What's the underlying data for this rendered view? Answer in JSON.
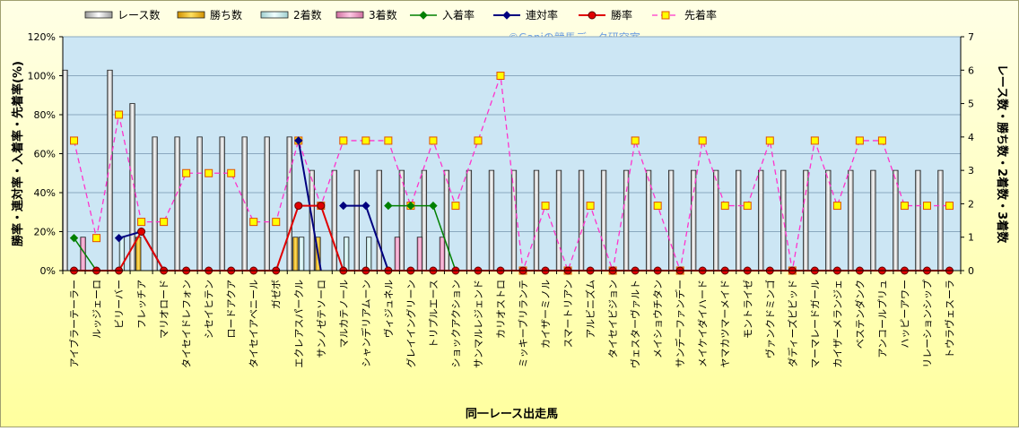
{
  "chart_data": {
    "type": "bar",
    "title": "",
    "watermark": "©Ganiの競馬データ研究室",
    "xlabel": "同一レース出走馬",
    "ylabel_left": "勝率・連対率・入着率・先着率(%)",
    "ylabel_right": "レース数・勝ち数・2着数・3着数",
    "ylim_left": [
      0,
      120
    ],
    "ylim_right": [
      0,
      7
    ],
    "left_ticks": [
      "0%",
      "20%",
      "40%",
      "60%",
      "80%",
      "100%",
      "120%"
    ],
    "right_ticks": [
      "0",
      "1",
      "2",
      "3",
      "4",
      "5",
      "6",
      "7"
    ],
    "grid": "horizontal",
    "legend_position": "top",
    "colors": {
      "races": "#ffffff",
      "wins": "#f0c020",
      "second": "#e0ffff",
      "third": "#f4a0c8",
      "place_rate": "#008000",
      "rentai_rate": "#00007f",
      "win_rate": "#e00000",
      "senchaku_rate": "#ff33cc",
      "senchaku_marker": "#ffff00",
      "plot_bg": "#cce6f4",
      "page_bg": "#ffffc8"
    },
    "categories": [
      "アイブラーテーラー",
      "ルッジェーロ",
      "ビリーバー",
      "フレッチア",
      "マリオロード",
      "タイセイドレフォン",
      "シセイヒテン",
      "ロードアクア",
      "タイセイアベニール",
      "ガゼボ",
      "エクレアスパークル",
      "サンノゼテソーロ",
      "マルカテノール",
      "シャンデリアムーン",
      "ヴィジュネル",
      "グレイイングリーン",
      "トリプルエース",
      "ショックアクション",
      "サンマルレジェンド",
      "カリオストロ",
      "ミッキーブリランテ",
      "カイザーミノル",
      "スマートリアン",
      "アルビニズム",
      "タイセイビジョン",
      "ヴェスターヴァルト",
      "メイショウチタン",
      "サンデーファンデー",
      "メイケイダイハード",
      "ヤマカツマーメイド",
      "モントライゼ",
      "ヴァンクドミンゴ",
      "ダディーズビビッド",
      "マーマレードガール",
      "カイザーメランジェ",
      "ベステンダンク",
      "アンコールプリュ",
      "ハッピーアワー",
      "リレーションシップ",
      "トウラヴェスーラ"
    ],
    "series": [
      {
        "name": "レース数",
        "axis": "right",
        "kind": "bar",
        "values": [
          6,
          0,
          6,
          5,
          4,
          4,
          4,
          4,
          4,
          4,
          4,
          3,
          3,
          3,
          3,
          3,
          3,
          3,
          3,
          3,
          3,
          3,
          3,
          3,
          3,
          3,
          3,
          3,
          3,
          3,
          3,
          3,
          3,
          3,
          3,
          3,
          3,
          3,
          3,
          3
        ]
      },
      {
        "name": "勝ち数",
        "axis": "right",
        "kind": "bar",
        "values": [
          0,
          0,
          0,
          1,
          0,
          0,
          0,
          0,
          0,
          0,
          1,
          1,
          0,
          0,
          0,
          0,
          0,
          0,
          0,
          0,
          0,
          0,
          0,
          0,
          0,
          0,
          0,
          0,
          0,
          0,
          0,
          0,
          0,
          0,
          0,
          0,
          0,
          0,
          0,
          0
        ]
      },
      {
        "name": "2着数",
        "axis": "right",
        "kind": "bar",
        "values": [
          0,
          0,
          1,
          0,
          0,
          0,
          0,
          0,
          0,
          0,
          1,
          0,
          1,
          1,
          0,
          0,
          0,
          0,
          0,
          0,
          0,
          0,
          0,
          0,
          0,
          0,
          0,
          0,
          0,
          0,
          0,
          0,
          0,
          0,
          0,
          0,
          0,
          0,
          0,
          0
        ]
      },
      {
        "name": "3着数",
        "axis": "right",
        "kind": "bar",
        "values": [
          1,
          0,
          0,
          0,
          0,
          0,
          0,
          0,
          0,
          0,
          0,
          0,
          0,
          0,
          1,
          1,
          1,
          0,
          0,
          0,
          0,
          0,
          0,
          0,
          0,
          0,
          0,
          0,
          0,
          0,
          0,
          0,
          0,
          0,
          0,
          0,
          0,
          0,
          0,
          0
        ]
      },
      {
        "name": "入着率",
        "axis": "left",
        "kind": "line",
        "values": [
          16.7,
          null,
          null,
          null,
          null,
          null,
          null,
          null,
          null,
          null,
          null,
          null,
          null,
          null,
          33.3,
          33.3,
          33.3,
          null,
          null,
          null,
          null,
          null,
          null,
          null,
          null,
          null,
          null,
          null,
          null,
          null,
          null,
          null,
          null,
          null,
          null,
          null,
          null,
          null,
          null,
          null
        ]
      },
      {
        "name": "連対率",
        "axis": "left",
        "kind": "line",
        "values": [
          null,
          null,
          16.7,
          20.0,
          null,
          null,
          null,
          null,
          null,
          null,
          66.7,
          null,
          33.3,
          33.3,
          null,
          null,
          null,
          null,
          null,
          null,
          null,
          null,
          null,
          null,
          null,
          null,
          null,
          null,
          null,
          null,
          null,
          null,
          null,
          null,
          null,
          null,
          null,
          null,
          null,
          null
        ]
      },
      {
        "name": "勝率",
        "axis": "left",
        "kind": "line",
        "values": [
          0,
          0,
          0,
          20.0,
          0,
          0,
          0,
          0,
          0,
          0,
          33.3,
          33.3,
          0,
          0,
          0,
          0,
          0,
          0,
          0,
          0,
          0,
          0,
          0,
          0,
          0,
          0,
          0,
          0,
          0,
          0,
          0,
          0,
          0,
          0,
          0,
          0,
          0,
          0,
          0,
          0
        ]
      },
      {
        "name": "先着率",
        "axis": "left",
        "kind": "line",
        "values": [
          66.7,
          16.7,
          80.0,
          25.0,
          25.0,
          50.0,
          50.0,
          50.0,
          25.0,
          25.0,
          66.7,
          33.3,
          66.7,
          66.7,
          66.7,
          33.3,
          66.7,
          33.3,
          66.7,
          100.0,
          0,
          33.3,
          0,
          33.3,
          0,
          66.7,
          33.3,
          0,
          66.7,
          33.3,
          33.3,
          66.7,
          0,
          66.7,
          33.3,
          66.7,
          66.7,
          33.3,
          33.3,
          33.3
        ]
      }
    ]
  }
}
